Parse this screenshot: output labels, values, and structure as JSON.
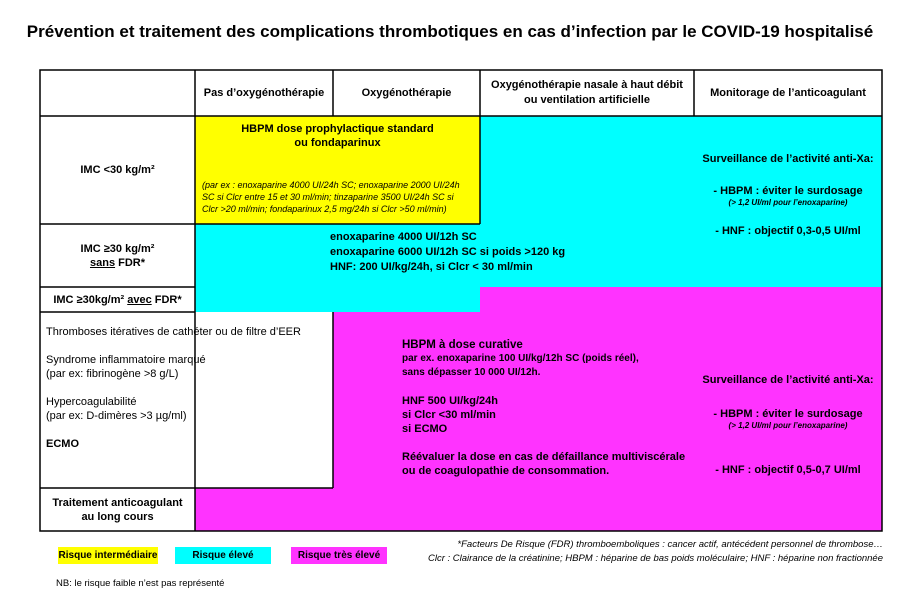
{
  "title": "Prévention et traitement des complications thrombotiques en cas d’infection par le COVID-19 hospitalisé",
  "headers": {
    "col1": "Pas d’oxygénothérapie",
    "col2": "Oxygénothérapie",
    "col3_line1": "Oxygénothérapie nasale à haut débit",
    "col3_line2": "ou ventilation artificielle",
    "col4": "Monitorage de l’anticoagulant"
  },
  "rows": {
    "r1": "IMC <30 kg/m²",
    "r2_line1": "IMC ≥30 kg/m²",
    "r2_sans": "sans",
    "r2_fdr": " FDR*",
    "r3_start": "IMC ≥30kg/m² ",
    "r3_avec": "avec",
    "r3_end": " FDR*",
    "r4_a": "Thromboses itératives de cathéter ou de filtre d’EER",
    "r4_b": "Syndrome inflammatoire marqué",
    "r4_b2": "(par ex: fibrinogène >8 g/L)",
    "r4_c": "Hypercoagulabilité",
    "r4_c2": "(par ex: D-dimères >3 µg/ml)",
    "r4_d": "ECMO",
    "r5_line1": "Traitement anticoagulant",
    "r5_line2": "au long cours"
  },
  "prophylactic": {
    "line1": "HBPM dose prophylactique standard",
    "line2": "ou fondaparinux",
    "detail1": "(par ex : enoxaparine 4000 UI/24h SC; enoxaparine 2000 UI/24h",
    "detail2": "SC si Clcr entre 15 et 30 ml/min; tinzaparine 3500 UI/24h SC si",
    "detail3": "Clcr >20 ml/min; fondaparinux 2,5 mg/24h si Clcr >50 ml/min)"
  },
  "intermediate": {
    "line1": "enoxaparine 4000 UI/12h SC",
    "line2": "enoxaparine 6000 UI/12h SC si poids >120 kg",
    "line3": "HNF: 200 UI/kg/24h, si Clcr < 30 ml/min"
  },
  "curative": {
    "l1": "HBPM à dose curative",
    "l2": "par ex. enoxaparine 100 UI/kg/12h SC (poids réel),",
    "l3": "sans dépasser 10 000 UI/12h.",
    "l4": "HNF 500 UI/kg/24h",
    "l5": "si Clcr <30 ml/min",
    "l6": "si ECMO",
    "l7": "Réévaluer la dose en cas de défaillance multiviscérale",
    "l8": "ou de coagulopathie de consommation."
  },
  "monitor_top": {
    "title": "Surveillance de l’activité anti-Xa:",
    "hbpm": "- HBPM : éviter le surdosage",
    "hbpm_note": "(> 1,2 UI/ml pour l’enoxaparine)",
    "hnf": "- HNF : objectif 0,3-0,5 UI/ml"
  },
  "monitor_bottom": {
    "title": "Surveillance de l’activité anti-Xa:",
    "hbpm": "- HBPM : éviter le surdosage",
    "hbpm_note": "(> 1,2 UI/ml pour l’enoxaparine)",
    "hnf": "-   HNF : objectif 0,5-0,7 UI/ml"
  },
  "legend": {
    "intermediate": "Risque intermédiaire",
    "high": "Risque élevé",
    "very_high": "Risque très élevé",
    "note": "NB: le risque faible n’est pas représenté"
  },
  "footnotes": {
    "line1": "*Facteurs De Risque (FDR) thromboemboliques : cancer actif, antécédent personnel de thrombose…",
    "line2": "Clcr : Clairance de la créatinine; HBPM : héparine de bas poids moléculaire; HNF : héparine non fractionnée"
  },
  "colors": {
    "intermediate": "#ffff00",
    "high": "#00ffff",
    "very_high": "#ff33ff"
  }
}
